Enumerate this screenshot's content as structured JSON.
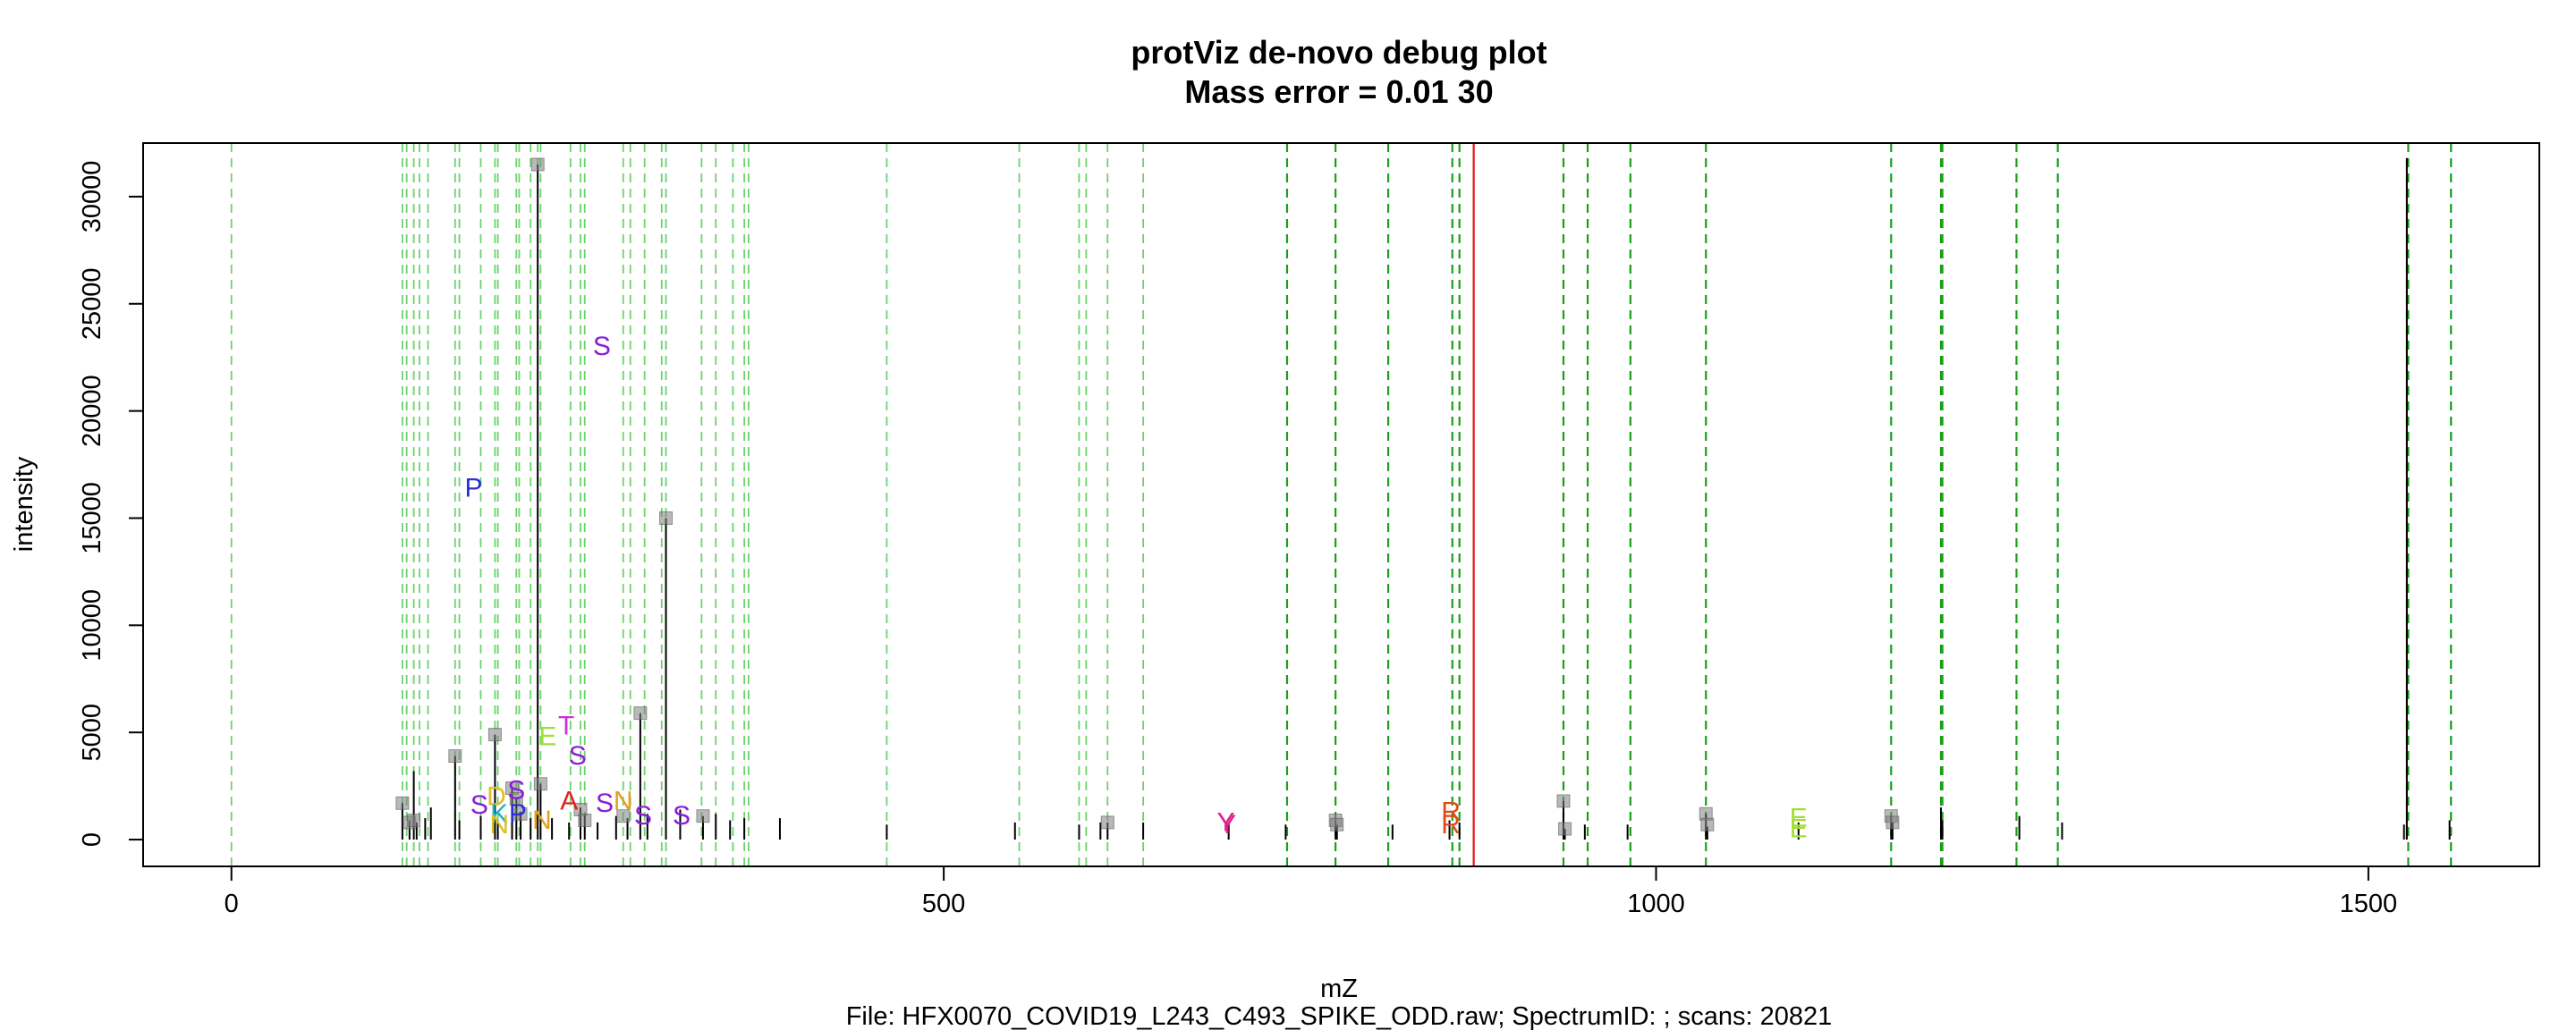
{
  "chart_data": {
    "type": "scatter",
    "title": "protViz de-novo debug plot",
    "subtitle": "Mass error = 0.01 30",
    "xlabel": "mZ",
    "ylabel": "intensity",
    "caption": "File: HFX0070_COVID19_L243_C493_SPIKE_ODD.raw; SpectrumID: ; scans: 20821",
    "xlim": [
      -62,
      1620
    ],
    "ylim": [
      -1250,
      32500
    ],
    "xticks": [
      0,
      500,
      1000,
      1500
    ],
    "xtick_labels": [
      "0",
      "500",
      "1000",
      "1500"
    ],
    "yticks": [
      0,
      5000,
      10000,
      15000,
      20000,
      25000,
      30000
    ],
    "ytick_labels": [
      "0",
      "5000",
      "10000",
      "15000",
      "20000",
      "25000",
      "30000"
    ],
    "grid": false,
    "precursor_mz": 872,
    "peaks": [
      {
        "mz": 120,
        "intensity": 1700
      },
      {
        "mz": 125,
        "intensity": 900
      },
      {
        "mz": 128,
        "intensity": 3200
      },
      {
        "mz": 130,
        "intensity": 800
      },
      {
        "mz": 136,
        "intensity": 1000
      },
      {
        "mz": 140,
        "intensity": 1500
      },
      {
        "mz": 157,
        "intensity": 3900
      },
      {
        "mz": 160,
        "intensity": 900
      },
      {
        "mz": 175,
        "intensity": 1100
      },
      {
        "mz": 185,
        "intensity": 4900
      },
      {
        "mz": 187,
        "intensity": 900
      },
      {
        "mz": 197,
        "intensity": 2400
      },
      {
        "mz": 200,
        "intensity": 1900
      },
      {
        "mz": 203,
        "intensity": 1300
      },
      {
        "mz": 210,
        "intensity": 1000
      },
      {
        "mz": 215,
        "intensity": 31500
      },
      {
        "mz": 217,
        "intensity": 2600
      },
      {
        "mz": 225,
        "intensity": 1000
      },
      {
        "mz": 237,
        "intensity": 800
      },
      {
        "mz": 245,
        "intensity": 1500
      },
      {
        "mz": 248,
        "intensity": 1200
      },
      {
        "mz": 257,
        "intensity": 800
      },
      {
        "mz": 270,
        "intensity": 1100
      },
      {
        "mz": 278,
        "intensity": 1000
      },
      {
        "mz": 287,
        "intensity": 5900
      },
      {
        "mz": 292,
        "intensity": 1200
      },
      {
        "mz": 305,
        "intensity": 15000
      },
      {
        "mz": 315,
        "intensity": 1400
      },
      {
        "mz": 331,
        "intensity": 1100
      },
      {
        "mz": 340,
        "intensity": 1200
      },
      {
        "mz": 350,
        "intensity": 900
      },
      {
        "mz": 360,
        "intensity": 1000
      },
      {
        "mz": 385,
        "intensity": 1000
      },
      {
        "mz": 460,
        "intensity": 700
      },
      {
        "mz": 550,
        "intensity": 800
      },
      {
        "mz": 595,
        "intensity": 700
      },
      {
        "mz": 610,
        "intensity": 800
      },
      {
        "mz": 615,
        "intensity": 800
      },
      {
        "mz": 640,
        "intensity": 800
      },
      {
        "mz": 700,
        "intensity": 800
      },
      {
        "mz": 740,
        "intensity": 700
      },
      {
        "mz": 775,
        "intensity": 900
      },
      {
        "mz": 776,
        "intensity": 700
      },
      {
        "mz": 815,
        "intensity": 700
      },
      {
        "mz": 855,
        "intensity": 900
      },
      {
        "mz": 862,
        "intensity": 800
      },
      {
        "mz": 935,
        "intensity": 1800
      },
      {
        "mz": 936,
        "intensity": 500
      },
      {
        "mz": 950,
        "intensity": 700
      },
      {
        "mz": 980,
        "intensity": 700
      },
      {
        "mz": 1035,
        "intensity": 1200
      },
      {
        "mz": 1036,
        "intensity": 600
      },
      {
        "mz": 1100,
        "intensity": 800
      },
      {
        "mz": 1165,
        "intensity": 1100
      },
      {
        "mz": 1166,
        "intensity": 800
      },
      {
        "mz": 1200,
        "intensity": 1500
      },
      {
        "mz": 1201,
        "intensity": 900
      },
      {
        "mz": 1255,
        "intensity": 1100
      },
      {
        "mz": 1285,
        "intensity": 800
      },
      {
        "mz": 1525,
        "intensity": 700
      },
      {
        "mz": 1527,
        "intensity": 31800
      },
      {
        "mz": 1557,
        "intensity": 900
      }
    ],
    "markers": [
      {
        "mz": 120,
        "intensity": 1700
      },
      {
        "mz": 125,
        "intensity": 800
      },
      {
        "mz": 128,
        "intensity": 900
      },
      {
        "mz": 157,
        "intensity": 3900
      },
      {
        "mz": 185,
        "intensity": 4900
      },
      {
        "mz": 197,
        "intensity": 2400
      },
      {
        "mz": 200,
        "intensity": 1900
      },
      {
        "mz": 203,
        "intensity": 1200
      },
      {
        "mz": 215,
        "intensity": 31500
      },
      {
        "mz": 217,
        "intensity": 2600
      },
      {
        "mz": 245,
        "intensity": 1400
      },
      {
        "mz": 248,
        "intensity": 900
      },
      {
        "mz": 275,
        "intensity": 1100
      },
      {
        "mz": 287,
        "intensity": 5900
      },
      {
        "mz": 305,
        "intensity": 15000
      },
      {
        "mz": 331,
        "intensity": 1100
      },
      {
        "mz": 615,
        "intensity": 800
      },
      {
        "mz": 775,
        "intensity": 900
      },
      {
        "mz": 776,
        "intensity": 700
      },
      {
        "mz": 935,
        "intensity": 1800
      },
      {
        "mz": 936,
        "intensity": 500
      },
      {
        "mz": 1035,
        "intensity": 1200
      },
      {
        "mz": 1036,
        "intensity": 700
      },
      {
        "mz": 1165,
        "intensity": 1100
      },
      {
        "mz": 1166,
        "intensity": 800
      }
    ],
    "reference_lines": [
      0,
      120,
      123,
      128,
      132,
      138,
      157,
      160,
      175,
      185,
      187,
      200,
      202,
      210,
      215,
      217,
      238,
      245,
      248,
      275,
      280,
      290,
      302,
      305,
      330,
      340,
      352,
      360,
      363,
      460,
      553,
      595,
      600,
      615,
      640,
      741,
      775,
      812,
      857,
      862,
      935,
      952,
      982,
      1035,
      1165,
      1200,
      1201,
      1253,
      1282,
      1528,
      1558
    ],
    "strong_reference_lines": [
      741,
      775,
      812,
      857,
      862,
      935,
      952,
      982,
      1035,
      1165,
      1200,
      1201,
      1253,
      1282,
      1528,
      1558
    ],
    "annotations": [
      {
        "text": "S",
        "mz": 260,
        "intensity": 23000,
        "color": "#8b1ed8"
      },
      {
        "text": "P",
        "mz": 170,
        "intensity": 16400,
        "color": "#2b2fd6"
      },
      {
        "text": "T",
        "mz": 235,
        "intensity": 5300,
        "color": "#cc2fd6"
      },
      {
        "text": "E",
        "mz": 222,
        "intensity": 4800,
        "color": "#a0e030"
      },
      {
        "text": "S",
        "mz": 243,
        "intensity": 3900,
        "color": "#8b1ed8"
      },
      {
        "text": "A",
        "mz": 237,
        "intensity": 1800,
        "color": "#e0201f"
      },
      {
        "text": "S",
        "mz": 262,
        "intensity": 1700,
        "color": "#8b1ed8"
      },
      {
        "text": "N",
        "mz": 275,
        "intensity": 1800,
        "color": "#e0a020"
      },
      {
        "text": "S",
        "mz": 289,
        "intensity": 1100,
        "color": "#8b1ed8"
      },
      {
        "text": "S",
        "mz": 316,
        "intensity": 1100,
        "color": "#8b1ed8"
      },
      {
        "text": "S",
        "mz": 174,
        "intensity": 1600,
        "color": "#8b1ed8"
      },
      {
        "text": "D",
        "mz": 186,
        "intensity": 2000,
        "color": "#e0c020"
      },
      {
        "text": "S",
        "mz": 200,
        "intensity": 2300,
        "color": "#8b1ed8"
      },
      {
        "text": "K",
        "mz": 188,
        "intensity": 1200,
        "color": "#1fb0c8"
      },
      {
        "text": "N",
        "mz": 188,
        "intensity": 700,
        "color": "#e0c020"
      },
      {
        "text": "P",
        "mz": 201,
        "intensity": 1200,
        "color": "#2b2fd6"
      },
      {
        "text": "N",
        "mz": 218,
        "intensity": 900,
        "color": "#e0a020"
      },
      {
        "text": "Y",
        "mz": 698,
        "intensity": 800,
        "color": "#e01e8c"
      },
      {
        "text": "Y",
        "mz": 699,
        "intensity": 700,
        "color": "#e01e8c"
      },
      {
        "text": "R",
        "mz": 856,
        "intensity": 1300,
        "color": "#e04a1a"
      },
      {
        "text": "R",
        "mz": 856,
        "intensity": 700,
        "color": "#e04a1a"
      },
      {
        "text": "E",
        "mz": 1100,
        "intensity": 1000,
        "color": "#a0e030"
      },
      {
        "text": "E",
        "mz": 1100,
        "intensity": 500,
        "color": "#a0e030"
      }
    ]
  }
}
